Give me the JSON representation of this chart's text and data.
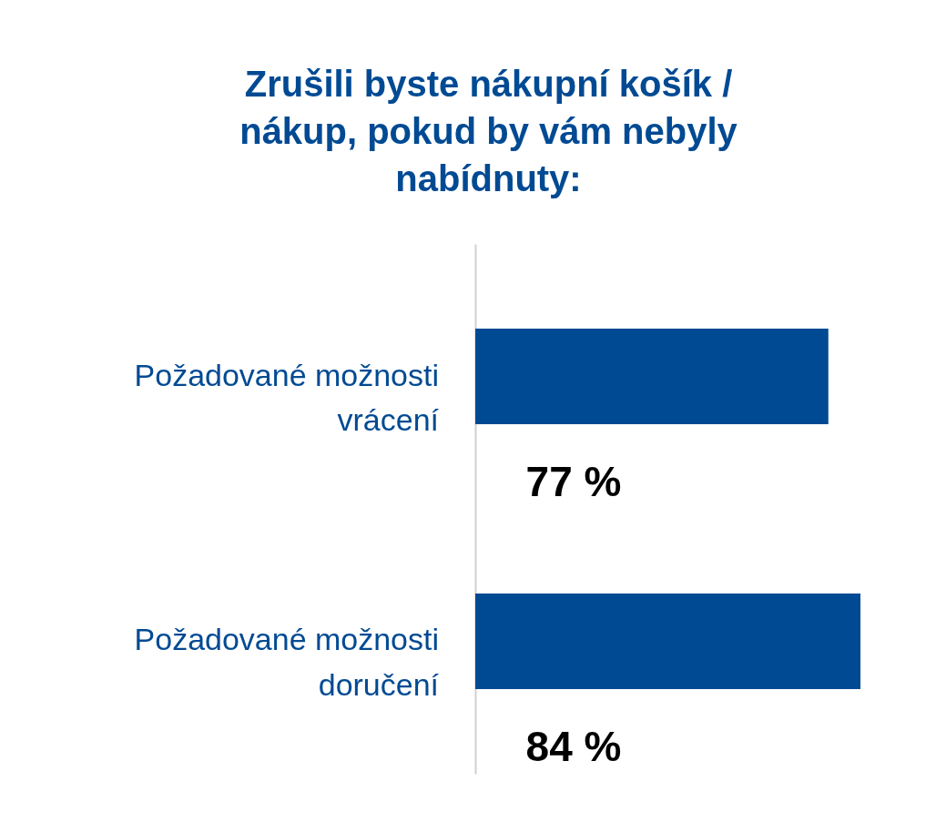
{
  "chart_data": {
    "type": "bar",
    "orientation": "horizontal",
    "title": "Zrušili byste nákupní košík / nákup, pokud by vám nebyly nabídnuty:",
    "categories": [
      "Požadované možnosti vrácení",
      "Požadované možnosti doručení"
    ],
    "values": [
      77,
      84
    ],
    "value_labels": [
      "77 %",
      "84 %"
    ],
    "color": "#004a93"
  }
}
